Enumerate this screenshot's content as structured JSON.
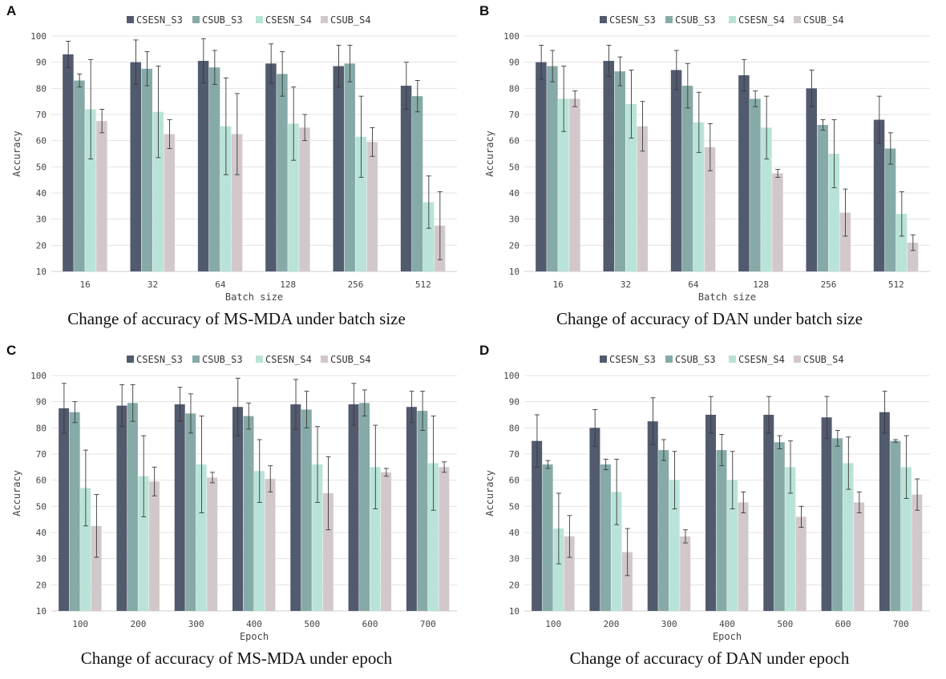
{
  "colors": {
    "CSESN_S3": "#525a6e",
    "CSUB_S3": "#86aaa7",
    "CSESN_S4": "#b9e3d8",
    "CSUB_S4": "#d2c8cb"
  },
  "chart_data": [
    {
      "type": "bar",
      "panel": "A",
      "caption": "Change of accuracy of MS-MDA under batch size",
      "xlabel": "Batch size",
      "ylabel": "Accuracy",
      "ylim": [
        10,
        100
      ],
      "yticks": [
        10,
        20,
        30,
        40,
        50,
        60,
        70,
        80,
        90,
        100
      ],
      "grid": true,
      "legend": "top-center",
      "categories": [
        "16",
        "32",
        "64",
        "128",
        "256",
        "512"
      ],
      "series": [
        {
          "name": "CSESN_S3",
          "values": [
            93,
            90,
            90.5,
            89.5,
            88.5,
            81
          ],
          "errors": [
            5,
            8.5,
            8.5,
            7.5,
            8,
            9
          ]
        },
        {
          "name": "CSUB_S3",
          "values": [
            83,
            87.5,
            88,
            85.5,
            89.5,
            77
          ],
          "errors": [
            2.5,
            6.5,
            6.5,
            8.5,
            7,
            6
          ]
        },
        {
          "name": "CSESN_S4",
          "values": [
            72,
            71,
            65.5,
            66.5,
            61.5,
            36.5
          ],
          "errors": [
            19,
            17.5,
            18.5,
            14,
            15.5,
            10
          ]
        },
        {
          "name": "CSUB_S4",
          "values": [
            67.5,
            62.5,
            62.5,
            65,
            59.5,
            27.5
          ],
          "errors": [
            4.5,
            5.5,
            15.5,
            5,
            5.5,
            13
          ]
        }
      ]
    },
    {
      "type": "bar",
      "panel": "B",
      "caption": "Change of accuracy of DAN under batch size",
      "xlabel": "Batch size",
      "ylabel": "Accuracy",
      "ylim": [
        10,
        100
      ],
      "yticks": [
        10,
        20,
        30,
        40,
        50,
        60,
        70,
        80,
        90,
        100
      ],
      "grid": true,
      "legend": "top-center",
      "categories": [
        "16",
        "32",
        "64",
        "128",
        "256",
        "512"
      ],
      "series": [
        {
          "name": "CSESN_S3",
          "values": [
            90,
            90.5,
            87,
            85,
            80,
            68
          ],
          "errors": [
            6.5,
            6,
            7.5,
            6,
            7,
            9
          ]
        },
        {
          "name": "CSUB_S3",
          "values": [
            88.5,
            86.5,
            81,
            76,
            66,
            57
          ],
          "errors": [
            6,
            5.5,
            8.5,
            3,
            2,
            6
          ]
        },
        {
          "name": "CSESN_S4",
          "values": [
            76,
            74,
            67,
            65,
            55,
            32
          ],
          "errors": [
            12.5,
            13,
            11.5,
            12,
            13,
            8.5
          ]
        },
        {
          "name": "CSUB_S4",
          "values": [
            76,
            65.5,
            57.5,
            47.5,
            32.5,
            21
          ],
          "errors": [
            3,
            9.5,
            9,
            1.5,
            9,
            3
          ]
        }
      ]
    },
    {
      "type": "bar",
      "panel": "C",
      "caption": "Change of accuracy of MS-MDA under epoch",
      "xlabel": "Epoch",
      "ylabel": "Accuracy",
      "ylim": [
        10,
        100
      ],
      "yticks": [
        10,
        20,
        30,
        40,
        50,
        60,
        70,
        80,
        90,
        100
      ],
      "grid": true,
      "legend": "top-center",
      "categories": [
        "100",
        "200",
        "300",
        "400",
        "500",
        "600",
        "700"
      ],
      "series": [
        {
          "name": "CSESN_S3",
          "values": [
            87.5,
            88.5,
            89,
            88,
            89,
            89,
            88
          ],
          "errors": [
            9.5,
            8,
            6.5,
            11,
            9.5,
            8,
            6
          ]
        },
        {
          "name": "CSUB_S3",
          "values": [
            86,
            89.5,
            85.5,
            84.5,
            87,
            89.5,
            86.5
          ],
          "errors": [
            4,
            7,
            7.5,
            5,
            7,
            5,
            7.5
          ]
        },
        {
          "name": "CSESN_S4",
          "values": [
            57,
            61.5,
            66,
            63.5,
            66,
            65,
            66.5
          ],
          "errors": [
            14.5,
            15.5,
            18.5,
            12,
            14.5,
            16,
            18
          ]
        },
        {
          "name": "CSUB_S4",
          "values": [
            42.5,
            59.5,
            61,
            60.5,
            55,
            63,
            65
          ],
          "errors": [
            12,
            5.5,
            2,
            5,
            14,
            1.5,
            2
          ]
        }
      ]
    },
    {
      "type": "bar",
      "panel": "D",
      "caption": "Change of accuracy of DAN under epoch",
      "xlabel": "Epoch",
      "ylabel": "Accuracy",
      "ylim": [
        10,
        100
      ],
      "yticks": [
        10,
        20,
        30,
        40,
        50,
        60,
        70,
        80,
        90,
        100
      ],
      "grid": true,
      "legend": "top-center",
      "categories": [
        "100",
        "200",
        "300",
        "400",
        "500",
        "600",
        "700"
      ],
      "series": [
        {
          "name": "CSESN_S3",
          "values": [
            75,
            80,
            82.5,
            85,
            85,
            84,
            86
          ],
          "errors": [
            10,
            7,
            9,
            7,
            7,
            8,
            8
          ]
        },
        {
          "name": "CSUB_S3",
          "values": [
            66,
            66,
            71.5,
            71.5,
            74.5,
            76,
            75
          ],
          "errors": [
            1.5,
            2,
            4,
            6,
            2.5,
            3,
            0.5
          ]
        },
        {
          "name": "CSESN_S4",
          "values": [
            41.5,
            55.5,
            60,
            60,
            65,
            66.5,
            65
          ],
          "errors": [
            13.5,
            12.5,
            11,
            11,
            10,
            10,
            12
          ]
        },
        {
          "name": "CSUB_S4",
          "values": [
            38.5,
            32.5,
            38.5,
            51.5,
            46,
            51.5,
            54.5
          ],
          "errors": [
            8,
            9,
            2.5,
            4,
            4,
            4,
            6
          ]
        }
      ]
    }
  ]
}
